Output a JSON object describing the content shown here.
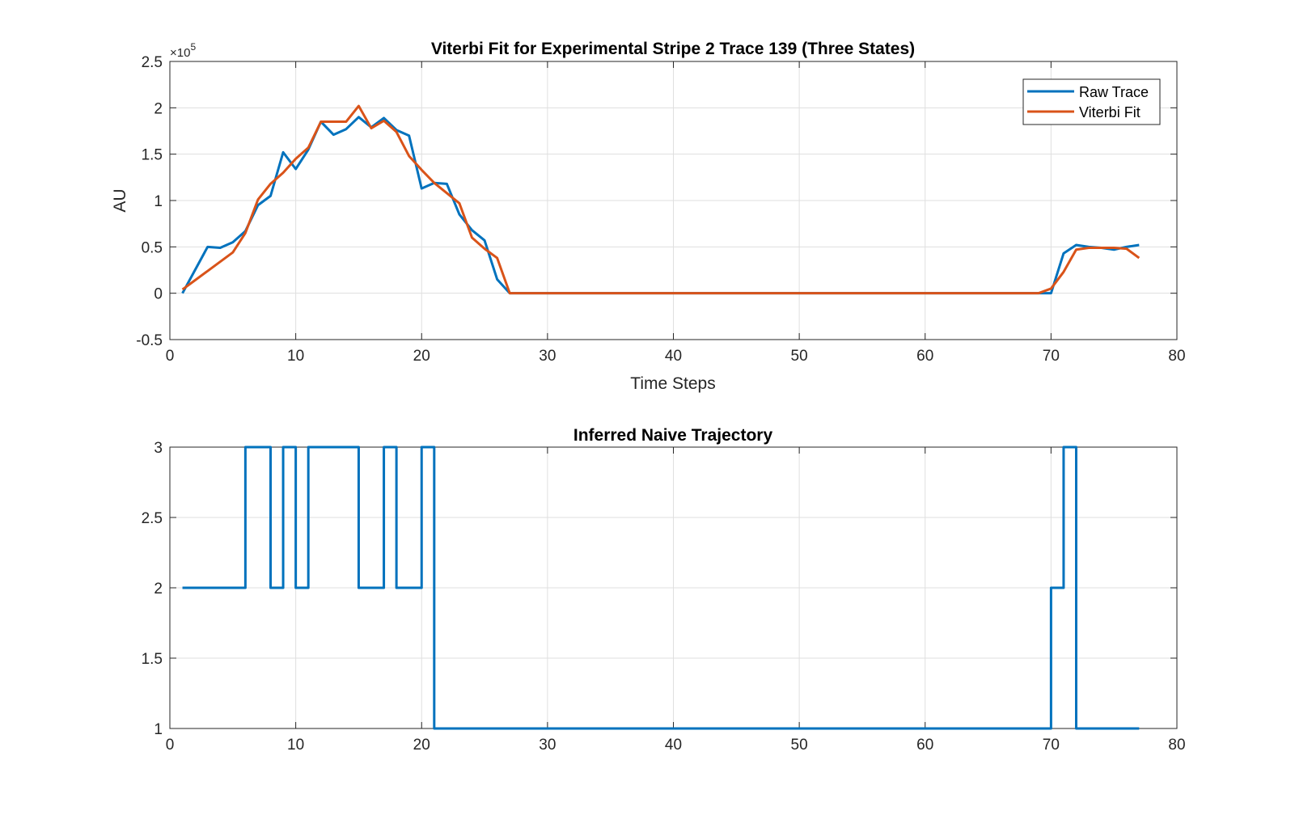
{
  "colors": {
    "raw": "#0072BD",
    "fit": "#D95319"
  },
  "chart_data": [
    {
      "type": "line",
      "title": "Viterbi Fit for Experimental Stripe 2 Trace 139 (Three States)",
      "xlabel": "Time Steps",
      "ylabel": "AU",
      "xlim": [
        0,
        80
      ],
      "ylim": [
        -50000,
        250000
      ],
      "x_ticks": [
        0,
        10,
        20,
        30,
        40,
        50,
        60,
        70,
        80
      ],
      "x_tick_labels": [
        "0",
        "10",
        "20",
        "30",
        "40",
        "50",
        "60",
        "70",
        "80"
      ],
      "y_ticks": [
        -50000,
        0,
        50000,
        100000,
        150000,
        200000,
        250000
      ],
      "y_tick_labels": [
        "-0.5",
        "0",
        "0.5",
        "1",
        "1.5",
        "2",
        "2.5"
      ],
      "y_exponent_label": "×10",
      "y_exponent_power": "5",
      "grid": true,
      "legend_position": "top-right",
      "series": [
        {
          "name": "Raw Trace",
          "color": "#0072BD",
          "x": [
            1,
            2,
            3,
            4,
            5,
            6,
            7,
            8,
            9,
            10,
            11,
            12,
            13,
            14,
            15,
            16,
            17,
            18,
            19,
            20,
            21,
            22,
            23,
            24,
            25,
            26,
            27,
            28,
            69,
            70,
            71,
            72,
            73,
            74,
            75,
            76,
            77
          ],
          "y": [
            0,
            25000,
            50000,
            49000,
            55000,
            67000,
            95000,
            105000,
            152000,
            134000,
            155000,
            185000,
            171000,
            177000,
            190000,
            179000,
            189000,
            176000,
            170000,
            113000,
            119000,
            118000,
            85000,
            68000,
            57000,
            15000,
            0,
            0,
            0,
            0,
            43000,
            52000,
            50000,
            49000,
            47000,
            50000,
            52000
          ]
        },
        {
          "name": "Viterbi Fit",
          "color": "#D95319",
          "x": [
            1,
            2,
            3,
            4,
            5,
            6,
            7,
            8,
            9,
            10,
            11,
            12,
            13,
            14,
            15,
            16,
            17,
            18,
            19,
            20,
            21,
            22,
            23,
            24,
            25,
            26,
            27,
            28,
            69,
            70,
            71,
            72,
            73,
            74,
            75,
            76,
            77
          ],
          "y": [
            4000,
            14000,
            24000,
            34000,
            44000,
            65000,
            101000,
            118000,
            130000,
            145000,
            157000,
            185000,
            185000,
            185000,
            202000,
            178000,
            186000,
            174000,
            148000,
            133000,
            119000,
            108000,
            97000,
            60000,
            48000,
            38000,
            0,
            0,
            0,
            5000,
            23000,
            47000,
            49000,
            49000,
            49000,
            48000,
            38000
          ]
        }
      ]
    },
    {
      "type": "line",
      "title": "Inferred Naive Trajectory",
      "xlabel": "",
      "ylabel": "",
      "xlim": [
        0,
        80
      ],
      "ylim": [
        1,
        3
      ],
      "x_ticks": [
        0,
        10,
        20,
        30,
        40,
        50,
        60,
        70,
        80
      ],
      "x_tick_labels": [
        "0",
        "10",
        "20",
        "30",
        "40",
        "50",
        "60",
        "70",
        "80"
      ],
      "y_ticks": [
        1,
        1.5,
        2,
        2.5,
        3
      ],
      "y_tick_labels": [
        "1",
        "1.5",
        "2",
        "2.5",
        "3"
      ],
      "grid": true,
      "step": true,
      "series": [
        {
          "color": "#0072BD",
          "x": [
            1,
            2,
            3,
            4,
            5,
            6,
            7,
            8,
            9,
            10,
            11,
            12,
            13,
            14,
            15,
            16,
            17,
            18,
            19,
            20,
            21,
            22,
            23,
            24,
            25,
            26,
            27,
            28,
            29,
            30,
            31,
            32,
            33,
            34,
            35,
            36,
            37,
            38,
            39,
            40,
            41,
            42,
            43,
            44,
            45,
            46,
            47,
            48,
            49,
            50,
            51,
            52,
            53,
            54,
            55,
            56,
            57,
            58,
            59,
            60,
            61,
            62,
            63,
            64,
            65,
            66,
            67,
            68,
            69,
            70,
            71,
            72,
            73,
            74,
            75,
            76,
            77
          ],
          "y": [
            2,
            2,
            2,
            2,
            2,
            3,
            3,
            2,
            3,
            2,
            3,
            3,
            3,
            3,
            2,
            2,
            3,
            2,
            2,
            3,
            1,
            1,
            1,
            1,
            1,
            1,
            1,
            1,
            1,
            1,
            1,
            1,
            1,
            1,
            1,
            1,
            1,
            1,
            1,
            1,
            1,
            1,
            1,
            1,
            1,
            1,
            1,
            1,
            1,
            1,
            1,
            1,
            1,
            1,
            1,
            1,
            1,
            1,
            1,
            1,
            1,
            1,
            1,
            1,
            1,
            1,
            1,
            1,
            1,
            2,
            3,
            1,
            1,
            1,
            1,
            1,
            1
          ]
        }
      ]
    }
  ]
}
